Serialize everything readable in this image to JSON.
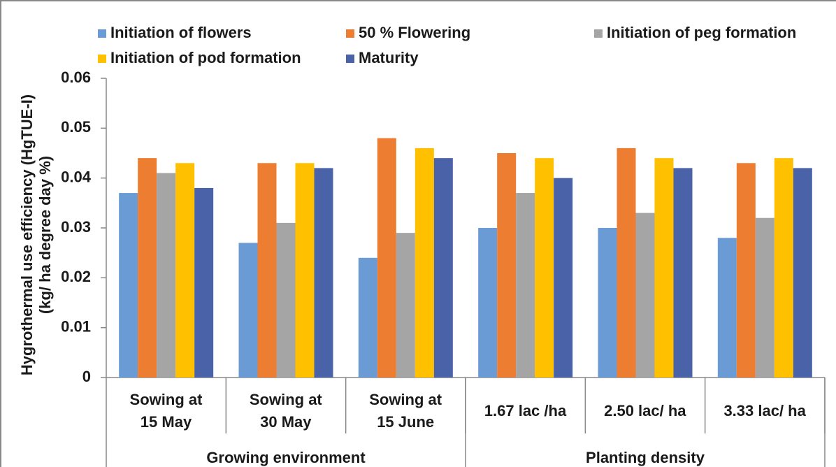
{
  "chart_data": {
    "type": "bar",
    "ylabel": [
      "Hygrothermal  use efficiency (HgTUE-I)",
      "(kg/ ha degree day %)"
    ],
    "categories": [
      "Sowing at\n15 May",
      "Sowing at\n30 May",
      "Sowing at\n15 June",
      "1.67 lac /ha",
      "2.50 lac/ ha",
      "3.33 lac/ ha"
    ],
    "groups": [
      {
        "label": "Growing environment",
        "span": 3
      },
      {
        "label": "Planting density",
        "span": 3
      }
    ],
    "series": [
      {
        "name": "Initiation of flowers",
        "color": "#6a9bd4",
        "values": [
          0.037,
          0.027,
          0.024,
          0.03,
          0.03,
          0.028
        ]
      },
      {
        "name": "50 % Flowering",
        "color": "#ed7d31",
        "values": [
          0.044,
          0.043,
          0.048,
          0.045,
          0.046,
          0.043
        ]
      },
      {
        "name": "Initiation of peg formation",
        "color": "#a5a5a5",
        "values": [
          0.041,
          0.031,
          0.029,
          0.037,
          0.033,
          0.032
        ]
      },
      {
        "name": "Initiation of pod formation",
        "color": "#ffc000",
        "values": [
          0.043,
          0.043,
          0.046,
          0.044,
          0.044,
          0.044
        ]
      },
      {
        "name": "Maturity",
        "color": "#4a62a8",
        "values": [
          0.038,
          0.042,
          0.044,
          0.04,
          0.042,
          0.042
        ]
      }
    ],
    "ylim": [
      0,
      0.06
    ],
    "yticks": [
      0,
      0.01,
      0.02,
      0.03,
      0.04,
      0.05,
      0.06
    ],
    "legend": "top"
  }
}
